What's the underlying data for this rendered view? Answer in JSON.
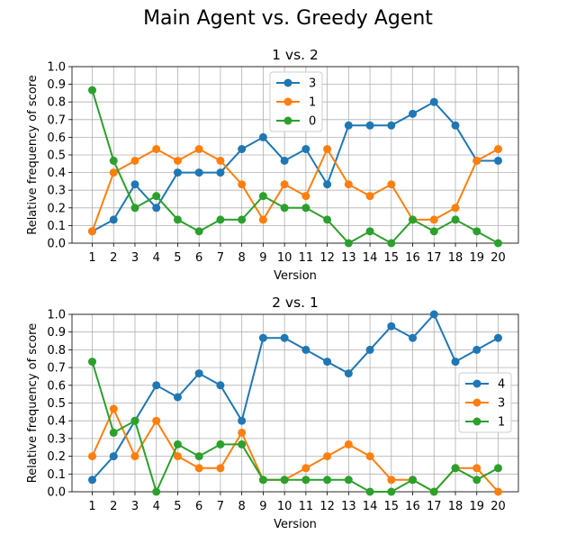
{
  "figure": {
    "title": "Main Agent vs. Greedy Agent"
  },
  "chart_data": [
    {
      "type": "line",
      "title": "1 vs. 2",
      "xlabel": "Version",
      "ylabel": "Relative frequency of score",
      "x": [
        1,
        2,
        3,
        4,
        5,
        6,
        7,
        8,
        9,
        10,
        11,
        12,
        13,
        14,
        15,
        16,
        17,
        18,
        19,
        20
      ],
      "ylim": [
        0,
        1.0
      ],
      "yticks": [
        "0.0",
        "0.1",
        "0.2",
        "0.3",
        "0.4",
        "0.5",
        "0.6",
        "0.7",
        "0.8",
        "0.9",
        "1.0"
      ],
      "grid": true,
      "legend_position": "top-center",
      "series": [
        {
          "name": "3",
          "color": "#1f77b4",
          "values": [
            0.067,
            0.133,
            0.333,
            0.2,
            0.4,
            0.4,
            0.4,
            0.533,
            0.6,
            0.467,
            0.533,
            0.333,
            0.667,
            0.667,
            0.667,
            0.733,
            0.8,
            0.667,
            0.467,
            0.467
          ]
        },
        {
          "name": "1",
          "color": "#ff7f0e",
          "values": [
            0.067,
            0.4,
            0.467,
            0.533,
            0.467,
            0.533,
            0.467,
            0.333,
            0.133,
            0.333,
            0.267,
            0.533,
            0.333,
            0.267,
            0.333,
            0.133,
            0.133,
            0.2,
            0.467,
            0.533
          ]
        },
        {
          "name": "0",
          "color": "#2ca02c",
          "values": [
            0.867,
            0.467,
            0.2,
            0.267,
            0.133,
            0.067,
            0.133,
            0.133,
            0.267,
            0.2,
            0.2,
            0.133,
            0.0,
            0.067,
            0.0,
            0.133,
            0.067,
            0.133,
            0.067,
            0.0
          ]
        }
      ]
    },
    {
      "type": "line",
      "title": "2 vs. 1",
      "xlabel": "Version",
      "ylabel": "Relative frequency of score",
      "x": [
        1,
        2,
        3,
        4,
        5,
        6,
        7,
        8,
        9,
        10,
        11,
        12,
        13,
        14,
        15,
        16,
        17,
        18,
        19,
        20
      ],
      "ylim": [
        0,
        1.0
      ],
      "yticks": [
        "0.0",
        "0.1",
        "0.2",
        "0.3",
        "0.4",
        "0.5",
        "0.6",
        "0.7",
        "0.8",
        "0.9",
        "1.0"
      ],
      "grid": true,
      "legend_position": "center-right",
      "series": [
        {
          "name": "4",
          "color": "#1f77b4",
          "values": [
            0.067,
            0.2,
            0.4,
            0.6,
            0.533,
            0.667,
            0.6,
            0.4,
            0.867,
            0.867,
            0.8,
            0.733,
            0.667,
            0.8,
            0.933,
            0.867,
            1.0,
            0.733,
            0.8,
            0.867
          ]
        },
        {
          "name": "3",
          "color": "#ff7f0e",
          "values": [
            0.2,
            0.467,
            0.2,
            0.4,
            0.2,
            0.133,
            0.133,
            0.333,
            0.067,
            0.067,
            0.133,
            0.2,
            0.267,
            0.2,
            0.067,
            0.067,
            0.0,
            0.133,
            0.133,
            0.0
          ]
        },
        {
          "name": "1",
          "color": "#2ca02c",
          "values": [
            0.733,
            0.333,
            0.4,
            0.0,
            0.267,
            0.2,
            0.267,
            0.267,
            0.067,
            0.067,
            0.067,
            0.067,
            0.067,
            0.0,
            0.0,
            0.067,
            0.0,
            0.133,
            0.067,
            0.133
          ]
        }
      ]
    }
  ]
}
